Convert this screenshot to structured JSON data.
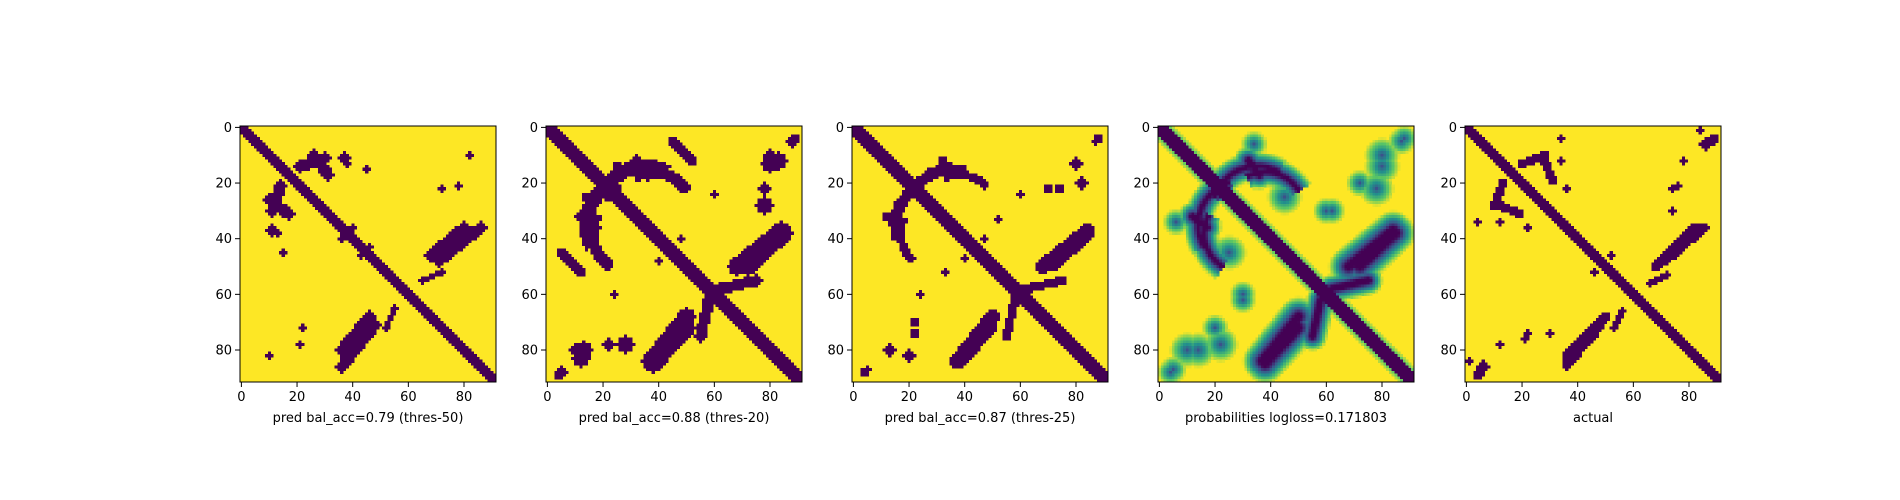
{
  "figure": {
    "colormap": "viridis",
    "color_low": "#440154",
    "color_mid": "#21918c",
    "color_high": "#fde725"
  },
  "chart_data": [
    {
      "type": "heatmap",
      "title": "",
      "xlabel": "pred bal_acc=0.79 (thres-50)",
      "ylabel": "",
      "size": 92,
      "xlim": [
        0,
        91
      ],
      "ylim": [
        91,
        0
      ],
      "x_ticks": [
        0,
        20,
        40,
        60,
        80
      ],
      "y_ticks": [
        0,
        20,
        40,
        60,
        80
      ],
      "binary": true,
      "diagonal_width": 2,
      "contact_bands": [
        {
          "start": [
            10,
            26
          ],
          "end": [
            17,
            31
          ],
          "width": 2
        },
        {
          "start": [
            21,
            14
          ],
          "end": [
            30,
            11
          ],
          "width": 2
        },
        {
          "start": [
            36,
            80
          ],
          "end": [
            46,
            68
          ],
          "width": 2
        },
        {
          "start": [
            86,
            36
          ],
          "end": [
            71,
            48
          ],
          "width": 2
        },
        {
          "start": [
            72,
            52
          ],
          "end": [
            65,
            55
          ],
          "width": 1
        }
      ],
      "blobs": [
        {
          "cx": 11,
          "cy": 37,
          "r": 2
        },
        {
          "cx": 40,
          "cy": 36,
          "r": 1
        },
        {
          "cx": 46,
          "cy": 43,
          "r": 1
        },
        {
          "cx": 78,
          "cy": 21,
          "r": 1
        },
        {
          "cx": 82,
          "cy": 10,
          "r": 1
        },
        {
          "cx": 22,
          "cy": 72,
          "r": 1
        },
        {
          "cx": 38,
          "cy": 13,
          "r": 1
        },
        {
          "cx": 15,
          "cy": 45,
          "r": 1
        }
      ]
    },
    {
      "type": "heatmap",
      "title": "",
      "xlabel": "pred bal_acc=0.88 (thres-20)",
      "ylabel": "",
      "size": 92,
      "xlim": [
        0,
        91
      ],
      "ylim": [
        91,
        0
      ],
      "x_ticks": [
        0,
        20,
        40,
        60,
        80
      ],
      "y_ticks": [
        0,
        20,
        40,
        60,
        80
      ],
      "binary": true,
      "diagonal_width": 3,
      "arcs": [
        {
          "cx": 35,
          "cy": 30,
          "r": 16,
          "start_deg": 195,
          "end_deg": 300,
          "width": 2.5
        },
        {
          "cx": 30,
          "cy": 38,
          "r": 14,
          "start_deg": 120,
          "end_deg": 210,
          "width": 2
        }
      ],
      "contact_bands": [
        {
          "start": [
            12,
            32
          ],
          "end": [
            17,
            36
          ],
          "width": 2
        },
        {
          "start": [
            38,
            85
          ],
          "end": [
            50,
            72
          ],
          "width": 3
        },
        {
          "start": [
            84,
            37
          ],
          "end": [
            68,
            50
          ],
          "width": 3
        },
        {
          "start": [
            75,
            55
          ],
          "end": [
            62,
            58
          ],
          "width": 2
        },
        {
          "start": [
            45,
            5
          ],
          "end": [
            52,
            12
          ],
          "width": 1.5
        }
      ],
      "blobs": [
        {
          "cx": 12,
          "cy": 83,
          "r": 3
        },
        {
          "cx": 28,
          "cy": 78,
          "r": 3
        },
        {
          "cx": 10,
          "cy": 80,
          "r": 2
        },
        {
          "cx": 80,
          "cy": 13,
          "r": 3
        },
        {
          "cx": 78,
          "cy": 22,
          "r": 2
        },
        {
          "cx": 88,
          "cy": 5,
          "r": 2
        },
        {
          "cx": 4,
          "cy": 89,
          "r": 1.5
        },
        {
          "cx": 60,
          "cy": 24,
          "r": 1
        },
        {
          "cx": 40,
          "cy": 48,
          "r": 1
        },
        {
          "cx": 14,
          "cy": 25,
          "r": 1.5
        }
      ]
    },
    {
      "type": "heatmap",
      "title": "",
      "xlabel": "pred bal_acc=0.87 (thres-25)",
      "ylabel": "",
      "size": 92,
      "xlim": [
        0,
        91
      ],
      "ylim": [
        91,
        0
      ],
      "x_ticks": [
        0,
        20,
        40,
        60,
        80
      ],
      "y_ticks": [
        0,
        20,
        40,
        60,
        80
      ],
      "binary": true,
      "diagonal_width": 3,
      "arcs": [
        {
          "cx": 35,
          "cy": 30,
          "r": 15,
          "start_deg": 200,
          "end_deg": 290,
          "width": 2
        },
        {
          "cx": 30,
          "cy": 38,
          "r": 13,
          "start_deg": 130,
          "end_deg": 205,
          "width": 1.5
        }
      ],
      "contact_bands": [
        {
          "start": [
            12,
            32
          ],
          "end": [
            17,
            36
          ],
          "width": 1.5
        },
        {
          "start": [
            38,
            84
          ],
          "end": [
            49,
            72
          ],
          "width": 2.5
        },
        {
          "start": [
            84,
            37
          ],
          "end": [
            68,
            50
          ],
          "width": 2.5
        },
        {
          "start": [
            75,
            55
          ],
          "end": [
            62,
            58
          ],
          "width": 1.5
        }
      ],
      "blobs": [
        {
          "cx": 20,
          "cy": 82,
          "r": 2
        },
        {
          "cx": 22,
          "cy": 74,
          "r": 1.5
        },
        {
          "cx": 4,
          "cy": 88,
          "r": 1.5
        },
        {
          "cx": 80,
          "cy": 13,
          "r": 2
        },
        {
          "cx": 70,
          "cy": 22,
          "r": 1.5
        },
        {
          "cx": 87,
          "cy": 5,
          "r": 1
        },
        {
          "cx": 60,
          "cy": 24,
          "r": 1
        },
        {
          "cx": 52,
          "cy": 33,
          "r": 1
        },
        {
          "cx": 40,
          "cy": 47,
          "r": 1
        }
      ]
    },
    {
      "type": "heatmap",
      "title": "",
      "xlabel": "probabilities logloss=0.171803",
      "ylabel": "",
      "size": 92,
      "xlim": [
        0,
        91
      ],
      "ylim": [
        91,
        0
      ],
      "x_ticks": [
        0,
        20,
        40,
        60,
        80
      ],
      "y_ticks": [
        0,
        20,
        40,
        60,
        80
      ],
      "binary": false,
      "diagonal_width": 3,
      "arcs": [
        {
          "cx": 35,
          "cy": 30,
          "r": 16,
          "start_deg": 195,
          "end_deg": 300,
          "width": 3
        },
        {
          "cx": 30,
          "cy": 38,
          "r": 14,
          "start_deg": 120,
          "end_deg": 210,
          "width": 3
        }
      ],
      "contact_bands": [
        {
          "start": [
            12,
            32
          ],
          "end": [
            17,
            36
          ],
          "width": 3
        },
        {
          "start": [
            38,
            85
          ],
          "end": [
            50,
            72
          ],
          "width": 4
        },
        {
          "start": [
            84,
            37
          ],
          "end": [
            68,
            50
          ],
          "width": 4
        },
        {
          "start": [
            75,
            55
          ],
          "end": [
            62,
            58
          ],
          "width": 3
        }
      ],
      "blobs": [
        {
          "cx": 10,
          "cy": 80,
          "r": 4
        },
        {
          "cx": 22,
          "cy": 78,
          "r": 4
        },
        {
          "cx": 4,
          "cy": 88,
          "r": 3
        },
        {
          "cx": 80,
          "cy": 14,
          "r": 4
        },
        {
          "cx": 72,
          "cy": 20,
          "r": 3
        },
        {
          "cx": 87,
          "cy": 5,
          "r": 3
        },
        {
          "cx": 45,
          "cy": 25,
          "r": 4
        },
        {
          "cx": 25,
          "cy": 45,
          "r": 4
        },
        {
          "cx": 60,
          "cy": 30,
          "r": 3
        },
        {
          "cx": 30,
          "cy": 62,
          "r": 3
        },
        {
          "cx": 6,
          "cy": 34,
          "r": 3
        },
        {
          "cx": 34,
          "cy": 6,
          "r": 3
        }
      ]
    },
    {
      "type": "heatmap",
      "title": "",
      "xlabel": "actual",
      "ylabel": "",
      "size": 92,
      "xlim": [
        0,
        91
      ],
      "ylim": [
        91,
        0
      ],
      "x_ticks": [
        0,
        20,
        40,
        60,
        80
      ],
      "y_ticks": [
        0,
        20,
        40,
        60,
        80
      ],
      "binary": true,
      "diagonal_width": 2,
      "contact_bands": [
        {
          "start": [
            12,
            28
          ],
          "end": [
            19,
            31
          ],
          "width": 1.5
        },
        {
          "start": [
            20,
            13
          ],
          "end": [
            28,
            10
          ],
          "width": 1.5
        },
        {
          "start": [
            36,
            82
          ],
          "end": [
            50,
            68
          ],
          "width": 1.5
        },
        {
          "start": [
            36,
            86
          ],
          "end": [
            48,
            72
          ],
          "width": 1.2
        },
        {
          "start": [
            85,
            36
          ],
          "end": [
            68,
            50
          ],
          "width": 1.5
        },
        {
          "start": [
            80,
            40
          ],
          "end": [
            70,
            48
          ],
          "width": 1.2
        },
        {
          "start": [
            72,
            53
          ],
          "end": [
            66,
            56
          ],
          "width": 1
        }
      ],
      "blobs": [
        {
          "cx": 6,
          "cy": 86,
          "r": 2
        },
        {
          "cx": 4,
          "cy": 89,
          "r": 1.5
        },
        {
          "cx": 88,
          "cy": 5,
          "r": 1.5
        },
        {
          "cx": 84,
          "cy": 1,
          "r": 1
        },
        {
          "cx": 78,
          "cy": 12,
          "r": 1
        },
        {
          "cx": 74,
          "cy": 22,
          "r": 1
        },
        {
          "cx": 52,
          "cy": 46,
          "r": 1
        },
        {
          "cx": 46,
          "cy": 52,
          "r": 1
        },
        {
          "cx": 34,
          "cy": 12,
          "r": 1
        },
        {
          "cx": 22,
          "cy": 36,
          "r": 1
        },
        {
          "cx": 4,
          "cy": 34,
          "r": 1
        },
        {
          "cx": 30,
          "cy": 74,
          "r": 1
        },
        {
          "cx": 21,
          "cy": 76,
          "r": 1
        }
      ]
    }
  ]
}
